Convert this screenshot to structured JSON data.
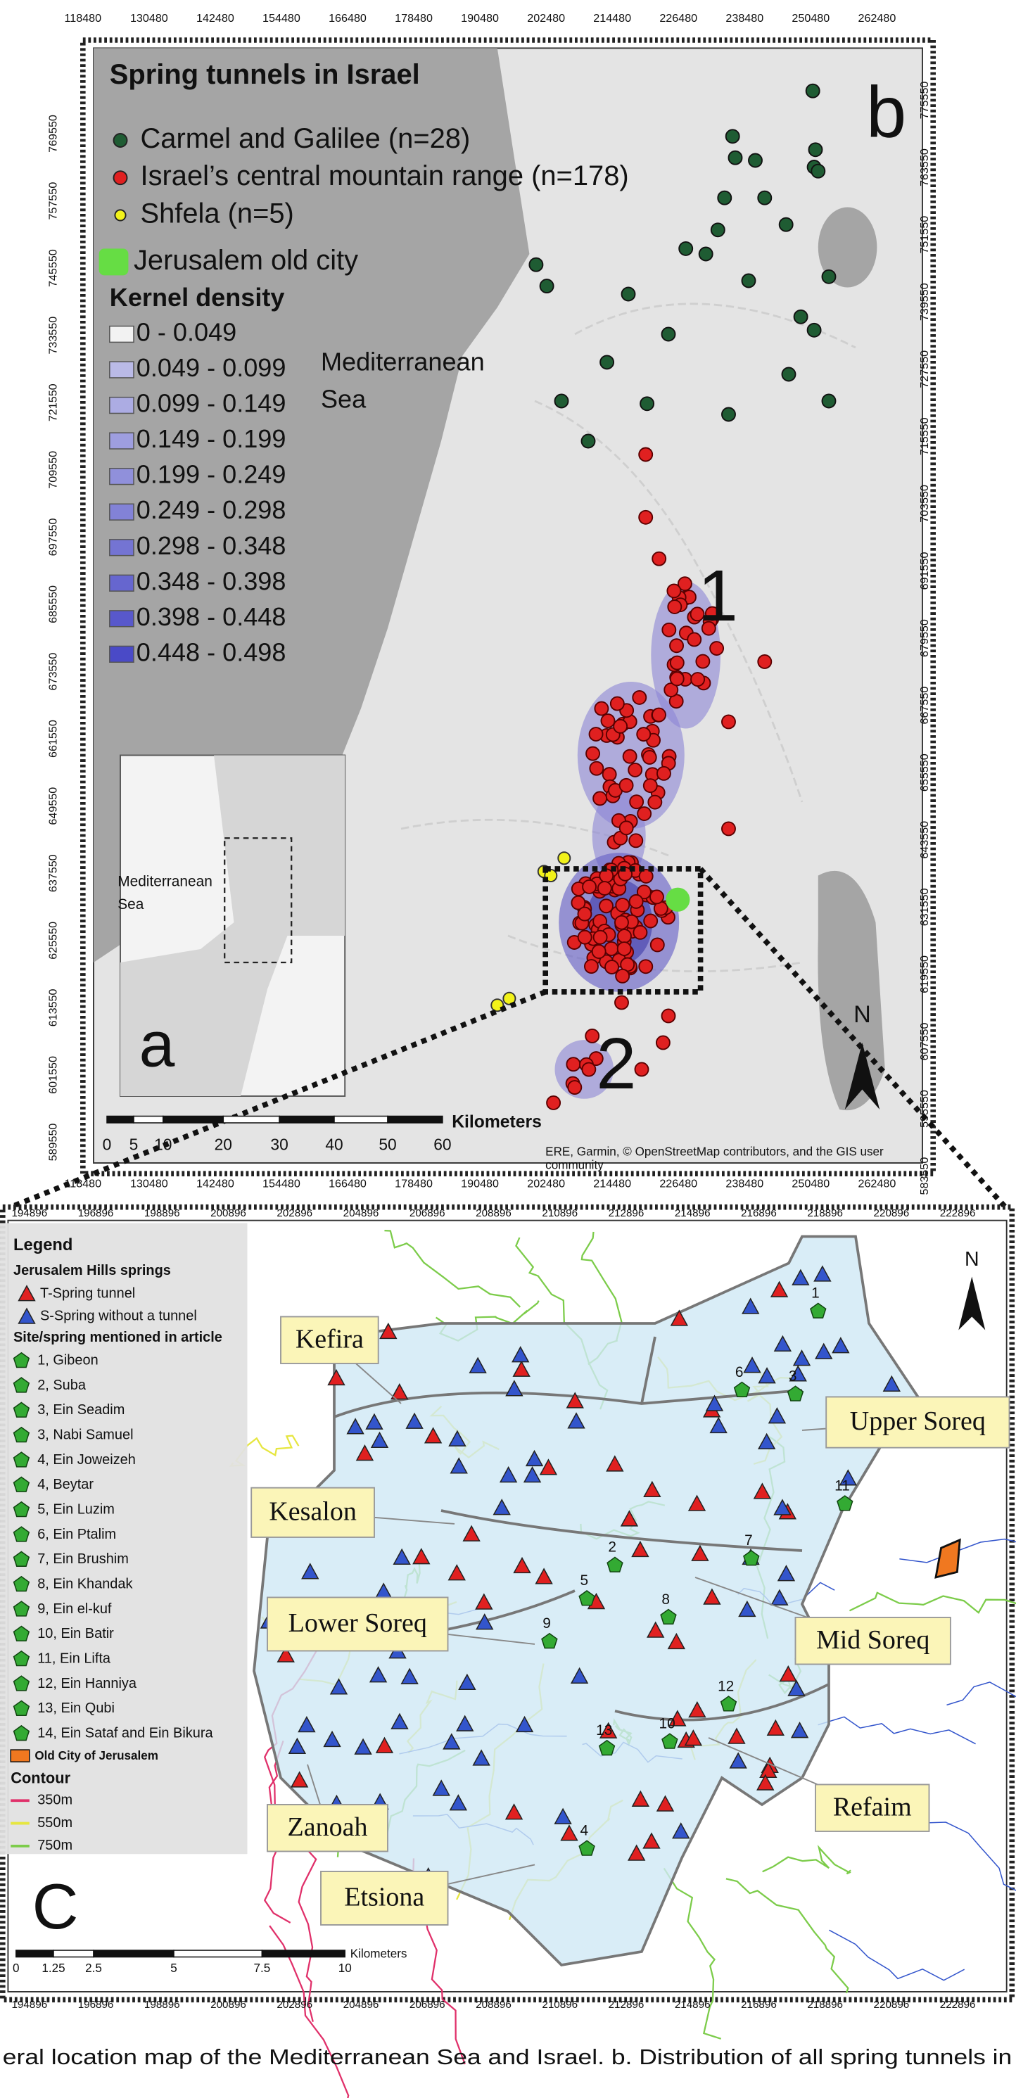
{
  "panel_a": {
    "letter": "a",
    "sea_label": [
      "Mediterranean",
      "Sea"
    ]
  },
  "panel_b": {
    "letter": "b",
    "title": "Spring tunnels in Israel",
    "legend": [
      {
        "label": "Carmel and Galilee (n=28)",
        "color": "#1f5c33"
      },
      {
        "label": "Israel’s central mountain range (n=178)",
        "color": "#e02020"
      },
      {
        "label": "Shfela (n=5)",
        "color": "#f2f21a"
      },
      {
        "label": "Jerusalem old city",
        "color": "#66dd44"
      }
    ],
    "kernel_density": {
      "title": "Kernel density",
      "classes": [
        "0 - 0.049",
        "0.049 - 0.099",
        "0.099 - 0.149",
        "0.149 - 0.199",
        "0.199 - 0.249",
        "0.249 - 0.298",
        "0.298 - 0.348",
        "0.348 - 0.398",
        "0.398 - 0.448",
        "0.448 - 0.498"
      ]
    },
    "sea_label": [
      "Mediterranean",
      "Sea"
    ],
    "area_labels": [
      "1",
      "2"
    ],
    "x_ticks": [
      "118480",
      "130480",
      "142480",
      "154480",
      "166480",
      "178480",
      "190480",
      "202480",
      "214480",
      "226480",
      "238480",
      "250480",
      "262480"
    ],
    "y_ticks_left": [
      "769550",
      "757550",
      "745550",
      "733550",
      "721550",
      "709550",
      "697550",
      "685550",
      "673550",
      "661550",
      "649550",
      "637550",
      "625550",
      "613550",
      "601550",
      "589550"
    ],
    "y_ticks_right": [
      "775550",
      "763550",
      "751550",
      "739550",
      "727550",
      "715550",
      "703550",
      "691550",
      "679550",
      "667550",
      "655550",
      "643550",
      "631550",
      "619550",
      "607550",
      "595550",
      "583550"
    ],
    "scale_bar": {
      "ticks": [
        "0",
        "5",
        "10",
        "20",
        "30",
        "40",
        "50",
        "60"
      ],
      "unit": "Kilometers"
    },
    "north": "N",
    "attribution": [
      "ERE, Garmin, © OpenStreetMap contributors, and the GIS user",
      "community"
    ]
  },
  "panel_c": {
    "letter": "C",
    "legend": {
      "title": "Legend",
      "group": "Jerusalem Hills springs",
      "symbols": [
        {
          "label": "T-Spring tunnel",
          "color": "#e02020"
        },
        {
          "label": "S-Spring without a tunnel",
          "color": "#3355cc"
        }
      ],
      "sites_title": "Site/spring mentioned in article",
      "sites": [
        "1, Gibeon",
        "2, Suba",
        "3, Ein Seadim",
        "3, Nabi Samuel",
        "4, Ein Joweizeh",
        "4, Beytar",
        "5, Ein Luzim",
        "6, Ein Ptalim",
        "7, Ein Brushim",
        "8, Ein Khandak",
        "9, Ein el-kuf",
        "10, Ein Batir",
        "11, Ein Lifta",
        "12, Ein Hanniya",
        "13, Ein Qubi",
        "14, Ein Sataf and Ein Bikura"
      ],
      "old_city": "Old City of Jerusalem",
      "contour_title": "Contour",
      "contours": [
        {
          "label": "350m",
          "color": "#e0306a"
        },
        {
          "label": "550m",
          "color": "#e6e640"
        },
        {
          "label": "750m",
          "color": "#7ccc4a"
        }
      ]
    },
    "regions": [
      "Kefira",
      "Upper Soreq",
      "Kesalon",
      "Mid Soreq",
      "Lower Soreq",
      "Zanoah",
      "Refaim",
      "Etsiona"
    ],
    "site_numbers": [
      "1",
      "3",
      "6",
      "11",
      "7",
      "2",
      "5",
      "8",
      "9",
      "12",
      "13",
      "10",
      "4"
    ],
    "x_ticks": [
      "194896",
      "196896",
      "198896",
      "200896",
      "202896",
      "204896",
      "206896",
      "208896",
      "210896",
      "212896",
      "214896",
      "216896",
      "218896",
      "220896",
      "222896"
    ],
    "scale_bar": {
      "ticks": [
        "0",
        "1.25",
        "2.5",
        "5",
        "7.5",
        "10"
      ],
      "unit": "Kilometers"
    },
    "north": "N"
  },
  "caption": [
    "eral location map of the Mediterranean Sea and Israel. b. Distribution of all spring tunnels in"
  ]
}
